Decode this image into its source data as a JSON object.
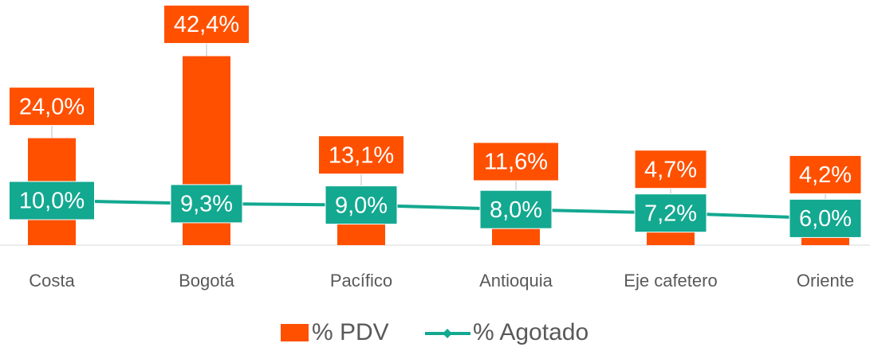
{
  "chart_data": {
    "type": "bar_line",
    "categories": [
      "Costa",
      "Bogotá",
      "Pacífico",
      "Antioquia",
      "Eje cafetero",
      "Oriente"
    ],
    "series": [
      {
        "name": "% PDV",
        "type": "bar",
        "color": "#ff5000",
        "values": [
          24.0,
          42.4,
          13.1,
          11.6,
          4.7,
          4.2
        ],
        "value_labels": [
          "24,0%",
          "42,4%",
          "13,1%",
          "11,6%",
          "4,7%",
          "4,2%"
        ]
      },
      {
        "name": "% Agotado",
        "type": "line",
        "color": "#13a890",
        "values": [
          10.0,
          9.3,
          9.0,
          8.0,
          7.2,
          6.0
        ],
        "value_labels": [
          "10,0%",
          "9,3%",
          "9,0%",
          "8,0%",
          "7,2%",
          "6,0%"
        ]
      }
    ],
    "ylim": [
      0,
      55
    ]
  }
}
